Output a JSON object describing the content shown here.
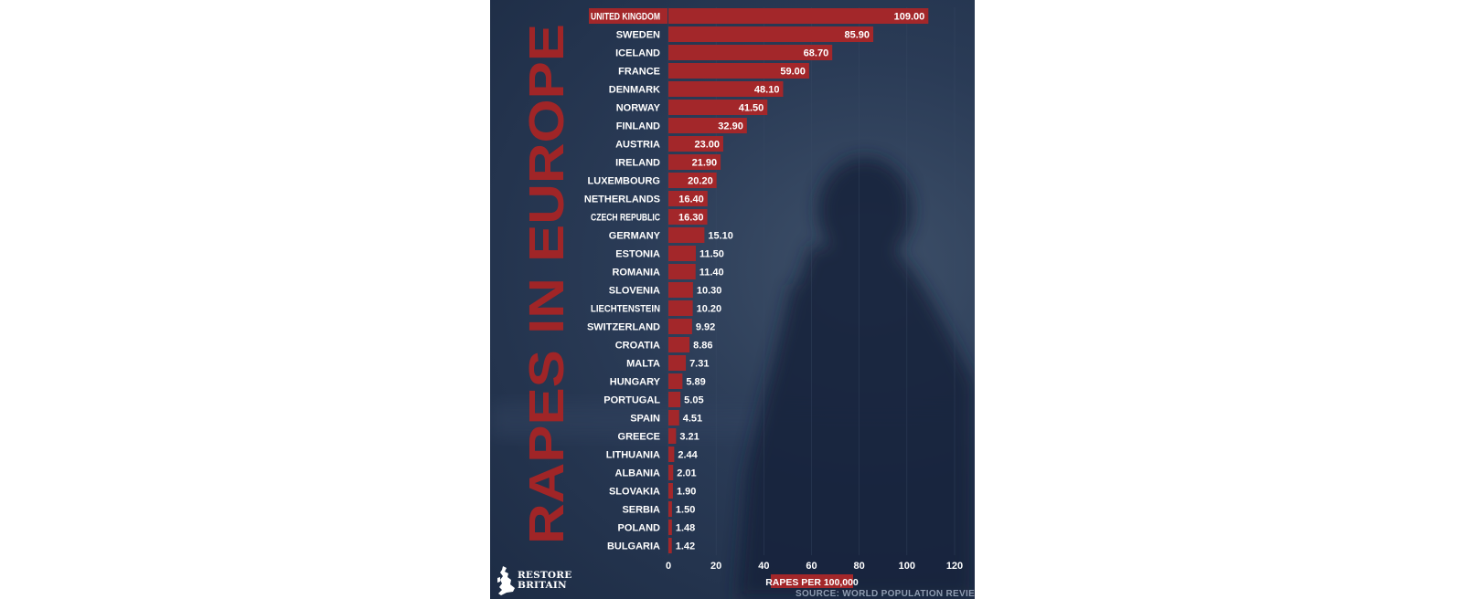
{
  "chart_data": {
    "type": "bar",
    "orientation": "horizontal",
    "title": "RAPES IN EUROPE",
    "xlabel": "RAPES PER 100,000",
    "xlim": [
      0,
      120
    ],
    "xticks": [
      0,
      20,
      40,
      60,
      80,
      100,
      120
    ],
    "categories": [
      "UNITED KINGDOM",
      "SWEDEN",
      "ICELAND",
      "FRANCE",
      "DENMARK",
      "NORWAY",
      "FINLAND",
      "AUSTRIA",
      "IRELAND",
      "LUXEMBOURG",
      "NETHERLANDS",
      "CZECH REPUBLIC",
      "GERMANY",
      "ESTONIA",
      "ROMANIA",
      "SLOVENIA",
      "LIECHTENSTEIN",
      "SWITZERLAND",
      "CROATIA",
      "MALTA",
      "HUNGARY",
      "PORTUGAL",
      "SPAIN",
      "GREECE",
      "LITHUANIA",
      "ALBANIA",
      "SLOVAKIA",
      "SERBIA",
      "POLAND",
      "BULGARIA"
    ],
    "values": [
      109.0,
      85.9,
      68.7,
      59.0,
      48.1,
      41.5,
      32.9,
      23.0,
      21.9,
      20.2,
      16.4,
      16.3,
      15.1,
      11.5,
      11.4,
      10.3,
      10.2,
      9.92,
      8.86,
      7.31,
      5.89,
      5.05,
      4.51,
      3.21,
      2.44,
      2.01,
      1.9,
      1.5,
      1.48,
      1.42
    ],
    "value_labels": [
      "109.00",
      "85.90",
      "68.70",
      "59.00",
      "48.10",
      "41.50",
      "32.90",
      "23.00",
      "21.90",
      "20.20",
      "16.40",
      "16.30",
      "15.10",
      "11.50",
      "11.40",
      "10.30",
      "10.20",
      "9.92",
      "8.86",
      "7.31",
      "5.89",
      "5.05",
      "4.51",
      "3.21",
      "2.44",
      "2.01",
      "1.90",
      "1.50",
      "1.48",
      "1.42"
    ],
    "highlight_category": "UNITED KINGDOM",
    "grid": true,
    "colors": {
      "bar": "#a3272a",
      "title": "#a02527",
      "background": "#1f2e48",
      "text": "#ffffff"
    }
  },
  "branding": {
    "line1": "RESTORE",
    "line2": "BRITAIN"
  },
  "source": "SOURCE: WORLD POPULATION REVIEW"
}
